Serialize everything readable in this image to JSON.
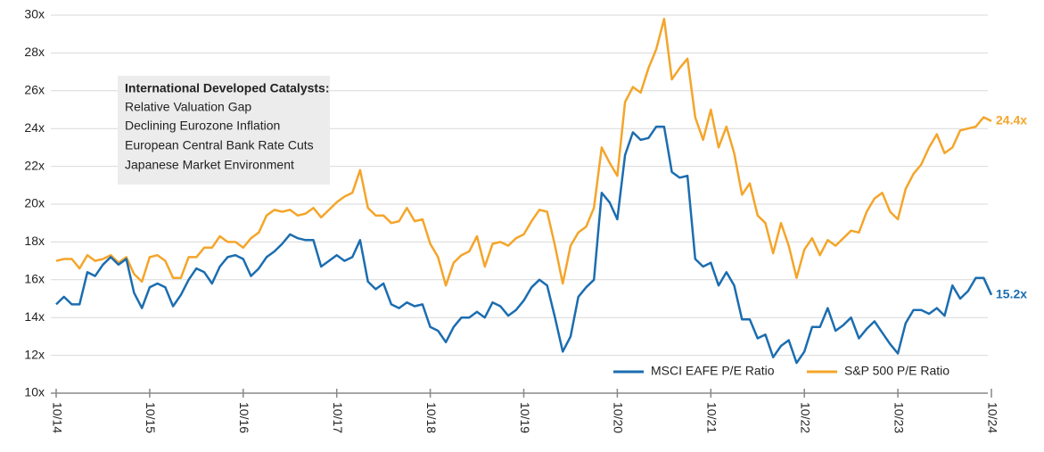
{
  "chart_data": {
    "type": "line",
    "categories": [
      "10/14",
      null,
      null,
      null,
      null,
      null,
      null,
      null,
      null,
      null,
      null,
      null,
      "10/15",
      null,
      null,
      null,
      null,
      null,
      null,
      null,
      null,
      null,
      null,
      null,
      "10/16",
      null,
      null,
      null,
      null,
      null,
      null,
      null,
      null,
      null,
      null,
      null,
      "10/17",
      null,
      null,
      null,
      null,
      null,
      null,
      null,
      null,
      null,
      null,
      null,
      "10/18",
      null,
      null,
      null,
      null,
      null,
      null,
      null,
      null,
      null,
      null,
      null,
      "10/19",
      null,
      null,
      null,
      null,
      null,
      null,
      null,
      null,
      null,
      null,
      null,
      "10/20",
      null,
      null,
      null,
      null,
      null,
      null,
      null,
      null,
      null,
      null,
      null,
      "10/21",
      null,
      null,
      null,
      null,
      null,
      null,
      null,
      null,
      null,
      null,
      null,
      "10/22",
      null,
      null,
      null,
      null,
      null,
      null,
      null,
      null,
      null,
      null,
      null,
      "10/23",
      null,
      null,
      null,
      null,
      null,
      null,
      null,
      null,
      null,
      null,
      null,
      "10/24"
    ],
    "series": [
      {
        "name": "MSCI EAFE P/E Ratio",
        "color": "#1b6db0",
        "values": [
          14.7,
          15.1,
          14.7,
          14.7,
          16.4,
          16.2,
          16.8,
          17.2,
          16.8,
          17.1,
          15.3,
          14.5,
          15.6,
          15.8,
          15.6,
          14.6,
          15.2,
          16.0,
          16.6,
          16.4,
          15.8,
          16.7,
          17.2,
          17.3,
          17.1,
          16.2,
          16.6,
          17.2,
          17.5,
          17.9,
          18.4,
          18.2,
          18.1,
          18.1,
          16.7,
          17.0,
          17.3,
          17.0,
          17.2,
          18.1,
          15.9,
          15.5,
          15.8,
          14.7,
          14.5,
          14.8,
          14.6,
          14.7,
          13.5,
          13.3,
          12.7,
          13.5,
          14.0,
          14.0,
          14.3,
          14.0,
          14.8,
          14.6,
          14.1,
          14.4,
          14.9,
          15.6,
          16.0,
          15.7,
          14.0,
          12.2,
          13.0,
          15.1,
          15.6,
          16.0,
          20.6,
          20.1,
          19.2,
          22.6,
          23.8,
          23.4,
          23.5,
          24.1,
          24.1,
          21.7,
          21.4,
          21.5,
          17.1,
          16.7,
          16.9,
          15.7,
          16.4,
          15.7,
          13.9,
          13.9,
          12.9,
          13.1,
          11.9,
          12.5,
          12.8,
          11.6,
          12.2,
          13.5,
          13.5,
          14.5,
          13.3,
          13.6,
          14.0,
          12.9,
          13.4,
          13.8,
          13.2,
          12.6,
          12.1,
          13.7,
          14.4,
          14.4,
          14.2,
          14.5,
          14.1,
          15.7,
          15.0,
          15.4,
          16.1,
          16.1,
          15.2
        ],
        "value_labels": [
          null,
          null,
          null,
          null,
          null,
          null,
          null,
          null,
          null,
          null,
          null,
          null,
          null,
          null,
          null,
          null,
          null,
          null,
          null,
          null,
          null,
          null,
          null,
          null,
          null,
          null,
          null,
          null,
          null,
          null,
          null,
          null,
          null,
          null,
          null,
          null,
          null,
          null,
          null,
          null,
          null,
          null,
          null,
          null,
          null,
          null,
          null,
          null,
          null,
          null,
          null,
          null,
          null,
          null,
          null,
          null,
          null,
          null,
          null,
          null,
          null,
          null,
          null,
          null,
          null,
          null,
          null,
          null,
          null,
          null,
          null,
          null,
          null,
          null,
          null,
          null,
          null,
          null,
          null,
          null,
          null,
          null,
          null,
          null,
          null,
          null,
          null,
          null,
          null,
          null,
          null,
          null,
          null,
          null,
          null,
          null,
          null,
          null,
          null,
          null,
          null,
          null,
          null,
          null,
          null,
          null,
          null,
          null,
          null,
          null,
          null,
          null,
          null,
          null,
          null,
          null,
          null,
          null,
          null,
          null,
          "15.2x"
        ]
      },
      {
        "name": "S&P 500 P/E Ratio",
        "color": "#f4a52a",
        "values": [
          17.0,
          17.1,
          17.1,
          16.6,
          17.3,
          17.0,
          17.1,
          17.3,
          16.9,
          17.2,
          16.3,
          15.9,
          17.2,
          17.3,
          17.0,
          16.1,
          16.1,
          17.2,
          17.2,
          17.7,
          17.7,
          18.3,
          18.0,
          18.0,
          17.7,
          18.2,
          18.5,
          19.4,
          19.7,
          19.6,
          19.7,
          19.4,
          19.5,
          19.8,
          19.3,
          19.7,
          20.1,
          20.4,
          20.6,
          21.8,
          19.8,
          19.4,
          19.4,
          19.0,
          19.1,
          19.8,
          19.1,
          19.2,
          17.9,
          17.2,
          15.7,
          16.9,
          17.3,
          17.5,
          18.3,
          16.7,
          17.9,
          18.0,
          17.8,
          18.2,
          18.4,
          19.1,
          19.7,
          19.6,
          17.8,
          15.8,
          17.8,
          18.5,
          18.8,
          19.8,
          23.0,
          22.2,
          21.5,
          25.4,
          26.2,
          25.9,
          27.2,
          28.2,
          29.8,
          26.6,
          27.2,
          27.7,
          24.6,
          23.4,
          25.0,
          23.0,
          24.1,
          22.7,
          20.5,
          21.1,
          19.4,
          19.0,
          17.4,
          19.0,
          17.8,
          16.1,
          17.6,
          18.2,
          17.3,
          18.1,
          17.8,
          18.2,
          18.6,
          18.5,
          19.6,
          20.3,
          20.6,
          19.6,
          19.2,
          20.8,
          21.6,
          22.1,
          23.0,
          23.7,
          22.7,
          23.0,
          23.9,
          24.0,
          24.1,
          24.6,
          24.4
        ],
        "value_labels": [
          null,
          null,
          null,
          null,
          null,
          null,
          null,
          null,
          null,
          null,
          null,
          null,
          null,
          null,
          null,
          null,
          null,
          null,
          null,
          null,
          null,
          null,
          null,
          null,
          null,
          null,
          null,
          null,
          null,
          null,
          null,
          null,
          null,
          null,
          null,
          null,
          null,
          null,
          null,
          null,
          null,
          null,
          null,
          null,
          null,
          null,
          null,
          null,
          null,
          null,
          null,
          null,
          null,
          null,
          null,
          null,
          null,
          null,
          null,
          null,
          null,
          null,
          null,
          null,
          null,
          null,
          null,
          null,
          null,
          null,
          null,
          null,
          null,
          null,
          null,
          null,
          null,
          null,
          null,
          null,
          null,
          null,
          null,
          null,
          null,
          null,
          null,
          null,
          null,
          null,
          null,
          null,
          null,
          null,
          null,
          null,
          null,
          null,
          null,
          null,
          null,
          null,
          null,
          null,
          null,
          null,
          null,
          null,
          null,
          null,
          null,
          null,
          null,
          null,
          null,
          null,
          null,
          null,
          null,
          null,
          "24.4x"
        ]
      }
    ],
    "ylim": [
      10,
      30
    ],
    "yticks": [
      {
        "value": 10,
        "label": "10x"
      },
      {
        "value": 12,
        "label": "12x"
      },
      {
        "value": 14,
        "label": "14x"
      },
      {
        "value": 16,
        "label": "16x"
      },
      {
        "value": 18,
        "label": "18x"
      },
      {
        "value": 20,
        "label": "20x"
      },
      {
        "value": 22,
        "label": "22x"
      },
      {
        "value": 24,
        "label": "24x"
      },
      {
        "value": 26,
        "label": "26x"
      },
      {
        "value": 28,
        "label": "28x"
      },
      {
        "value": 30,
        "label": "30x"
      }
    ],
    "grid": true,
    "legend": "lower right",
    "annotation": {
      "title": "International Developed Catalysts:",
      "items": [
        "Relative Valuation Gap",
        "Declining Eurozone Inflation",
        "European Central Bank Rate Cuts",
        "Japanese Market Environment"
      ]
    }
  }
}
